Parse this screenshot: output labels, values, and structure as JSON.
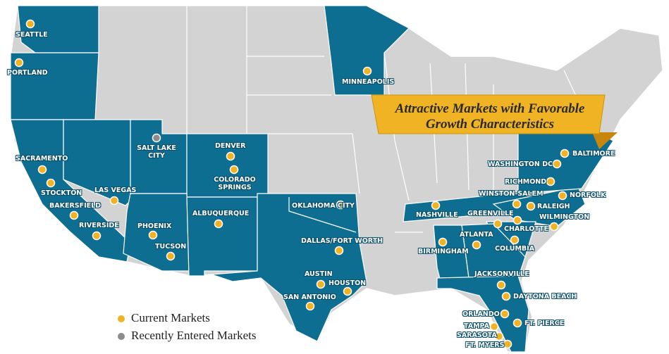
{
  "banner": [
    "Attractive Markets with Favorable",
    "Growth Characteristics"
  ],
  "legend": [
    {
      "label": "Current Markets",
      "color": "#f0b323",
      "markets": [
        "SEATTLE",
        "PORTLAND",
        "MINNEAPOLIS",
        "DENVER",
        "COLORADO SPRINGS",
        "SACRAMENTO",
        "STOCKTON",
        "LAS VEGAS",
        "BAKERSFIELD",
        "RIVERSIDE",
        "PHOENIX",
        "TUCSON",
        "ALBUQUERQUE",
        "OKLAHOMA CITY",
        "DALLAS/FORT WORTH",
        "AUSTIN",
        "HOUSTON",
        "SAN ANTONIO",
        "NASHVILLE",
        "BIRMINGHAM",
        "ATLANTA",
        "GREENVILLE",
        "CHARLOTTE",
        "COLUMBIA",
        "WINSTON-SALEM",
        "RALEIGH",
        "WILMINGTON",
        "NORFOLK",
        "RICHMOND",
        "WASHINGTON DC",
        "BALTIMORE",
        "JACKSONVILLE",
        "DAYTONA BEACH",
        "ORLANDO",
        "FT. PIERCE",
        "TAMPA",
        "SARASOTA",
        "FT. MYERS"
      ]
    },
    {
      "label": "Recently Entered Markets",
      "color": "#8c8c8c",
      "markets": [
        "SALT LAKE CITY"
      ]
    }
  ]
}
